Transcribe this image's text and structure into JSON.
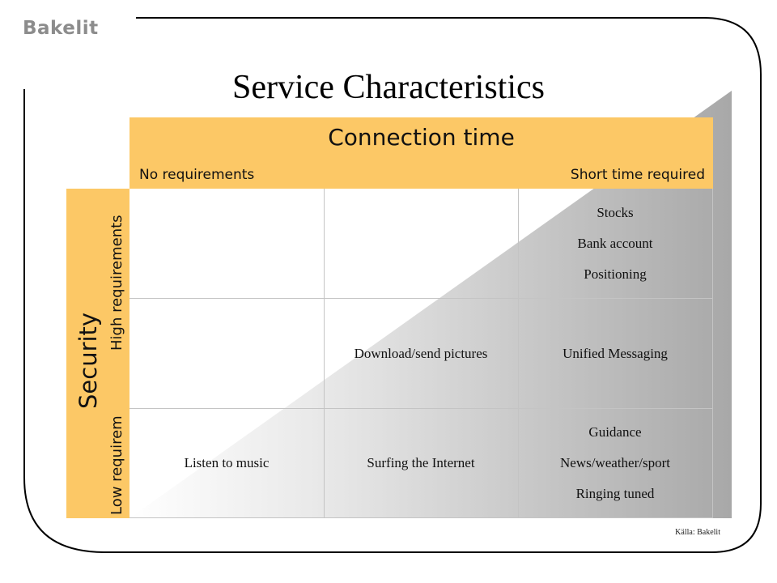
{
  "brand": "Bakelit",
  "title": "Service Characteristics",
  "column_axis": {
    "title": "Connection time",
    "left_label": "No requirements",
    "right_label": "Short time required"
  },
  "row_axis": {
    "title": "Security",
    "high_label": "High requirements",
    "low_label": "Low requirem"
  },
  "grid": {
    "rows": [
      {
        "cells": [
          [],
          [],
          [
            "Stocks",
            "Bank account",
            "Positioning"
          ]
        ]
      },
      {
        "cells": [
          [],
          [
            "Download/send pictures"
          ],
          [
            "Unified Messaging"
          ]
        ]
      },
      {
        "cells": [
          [
            "Listen to music"
          ],
          [
            "Surfing the Internet"
          ],
          [
            "Guidance",
            "News/weather/sport",
            "Ringing tuned"
          ]
        ]
      }
    ]
  },
  "source": "Källa: Bakelit",
  "colors": {
    "header_fill": "#fcc866",
    "triangle_gradient_light": "#ffffff",
    "triangle_gradient_dark": "#a8a8a8",
    "grid_line": "#c4c4c4",
    "brand_text": "#8c8c8c"
  }
}
